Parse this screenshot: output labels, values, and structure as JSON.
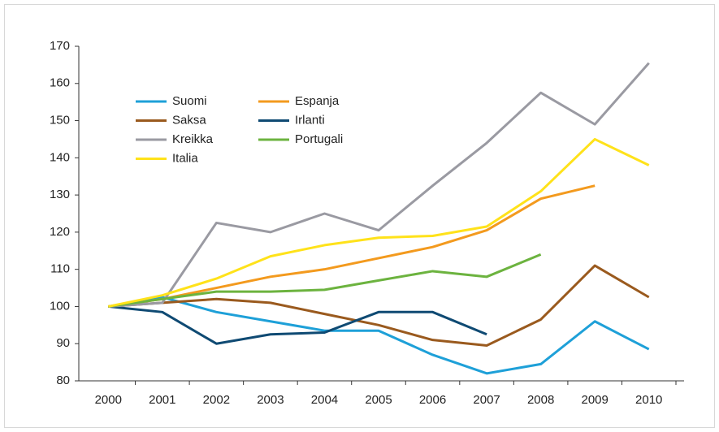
{
  "chart_data": {
    "type": "line",
    "categories": [
      "2000",
      "2001",
      "2002",
      "2003",
      "2004",
      "2005",
      "2006",
      "2007",
      "2008",
      "2009",
      "2010"
    ],
    "series": [
      {
        "name": "Suomi",
        "color": "#1ea0d8",
        "values": [
          100,
          102.5,
          98.5,
          96,
          93.5,
          93.5,
          87,
          82,
          84.5,
          96,
          88.5
        ]
      },
      {
        "name": "Espanja",
        "color": "#f39a1e",
        "values": [
          100,
          102,
          105,
          108,
          110,
          113,
          116,
          120.5,
          129,
          132.5,
          null
        ]
      },
      {
        "name": "Saksa",
        "color": "#9a5a1e",
        "values": [
          100,
          101,
          102,
          101,
          98,
          95,
          91,
          89.5,
          96.5,
          111,
          102.5
        ]
      },
      {
        "name": "Irlanti",
        "color": "#0f4a73",
        "values": [
          100,
          98.5,
          90,
          92.5,
          93,
          98.5,
          98.5,
          92.5,
          null,
          null,
          null
        ]
      },
      {
        "name": "Kreikka",
        "color": "#9a9aa2",
        "values": [
          100,
          101,
          122.5,
          120,
          125,
          120.5,
          132.5,
          144,
          157.5,
          149,
          165.5
        ]
      },
      {
        "name": "Portugali",
        "color": "#6cb33f",
        "values": [
          100,
          102,
          104,
          104,
          104.5,
          107,
          109.5,
          108,
          114,
          null,
          null
        ]
      },
      {
        "name": "Italia",
        "color": "#ffe21a",
        "values": [
          100,
          103,
          107.5,
          113.5,
          116.5,
          118.5,
          119,
          121.5,
          131,
          145,
          138
        ]
      }
    ],
    "ylim": [
      80,
      170
    ],
    "yticks": [
      80,
      90,
      100,
      110,
      120,
      130,
      140,
      150,
      160,
      170
    ],
    "grid": false
  }
}
